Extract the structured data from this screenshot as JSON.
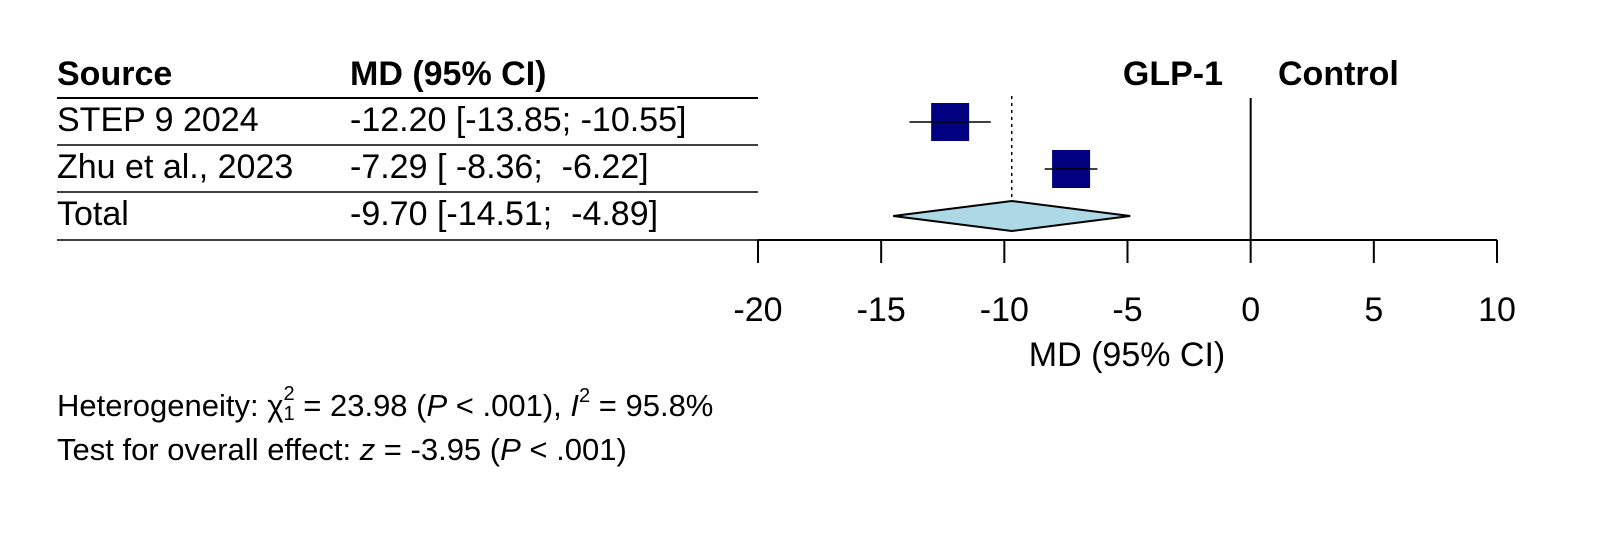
{
  "chart_data": {
    "type": "forest",
    "columns": [
      "Source",
      "MD (95% CI)"
    ],
    "studies": [
      {
        "name": "STEP 9 2024",
        "md": -12.2,
        "lower": -13.85,
        "upper": -10.55,
        "label": "-12.20 [-13.85; -10.55]"
      },
      {
        "name": "Zhu et al., 2023",
        "md": -7.29,
        "lower": -8.36,
        "upper": -6.22,
        "label": "-7.29 [ -8.36;  -6.22]"
      }
    ],
    "total": {
      "name": "Total",
      "md": -9.7,
      "lower": -14.51,
      "upper": -4.89,
      "label": "-9.70 [-14.51;  -4.89]"
    },
    "favors": [
      "GLP-1",
      "Control"
    ],
    "xlabel": "MD (95% CI)",
    "xlim": [
      -20,
      10
    ],
    "xticks": [
      -20,
      -15,
      -10,
      -5,
      0,
      5,
      10
    ],
    "reference_line": 0,
    "colors": {
      "study": "#000080",
      "total": "#add8e6"
    },
    "heterogeneity": [
      "Heterogeneity: χ",
      "2",
      "1",
      " = 23.98 (",
      "P",
      " < .001), ",
      "I",
      "2",
      " = 95.8%"
    ],
    "overall_effect": [
      "Test for overall effect: ",
      "z",
      " = -3.95 (",
      "P",
      " < .001)"
    ]
  }
}
